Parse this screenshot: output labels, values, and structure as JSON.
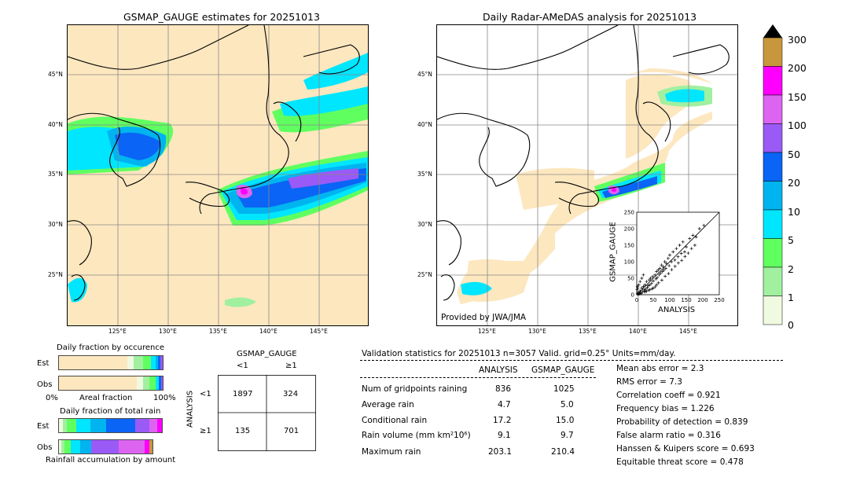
{
  "left_map": {
    "title": "GSMAP_GAUGE estimates for 20251013",
    "lat_labels": [
      "45°N",
      "40°N",
      "35°N",
      "30°N",
      "25°N"
    ],
    "lon_labels": [
      "125°E",
      "130°E",
      "135°E",
      "140°E",
      "145°E"
    ]
  },
  "right_map": {
    "title": "Daily Radar-AMeDAS analysis for 20251013",
    "lat_labels": [
      "45°N",
      "40°N",
      "35°N",
      "30°N",
      "25°N"
    ],
    "lon_labels": [
      "125°E",
      "130°E",
      "135°E",
      "140°E",
      "145°E"
    ],
    "credit": "Provided by JWA/JMA"
  },
  "colorbar": {
    "labels": [
      "300",
      "200",
      "150",
      "100",
      "50",
      "20",
      "10",
      "5",
      "2",
      "1",
      "0"
    ],
    "colors": [
      "#c8963c",
      "#ff00ff",
      "#dc64f0",
      "#9a5af5",
      "#0a64f5",
      "#00b4f0",
      "#00e6ff",
      "#60ff60",
      "#a0f0a0",
      "#f0fae0",
      "#fde7bf"
    ]
  },
  "scatter_inset": {
    "xlabel": "ANALYSIS",
    "ylabel": "GSMAP_GAUGE",
    "ticks": [
      "0",
      "50",
      "100",
      "150",
      "200",
      "250"
    ]
  },
  "chart_data": [
    {
      "type": "bar",
      "title": "Daily fraction by occurence",
      "xlabel": "Areal fraction",
      "tick_labels": [
        "0%",
        "100%"
      ],
      "categories": [
        "Est",
        "Obs"
      ]
    },
    {
      "type": "bar",
      "title": "Daily fraction of total rain",
      "xlabel": "Rainfall accumulation by amount",
      "categories": [
        "Est",
        "Obs"
      ]
    },
    {
      "type": "table",
      "title": "GSMAP_GAUGE",
      "col_labels": [
        "<1",
        "≥1"
      ],
      "row_axis": "ANALYSIS",
      "row_labels": [
        "<1",
        "≥1"
      ],
      "cells": [
        [
          "1897",
          "324"
        ],
        [
          "135",
          "701"
        ]
      ]
    },
    {
      "type": "scatter",
      "xlabel": "ANALYSIS",
      "ylabel": "GSMAP_GAUGE",
      "xlim": [
        0,
        250
      ],
      "ylim": [
        0,
        250
      ],
      "points": [
        [
          2,
          3
        ],
        [
          4,
          1
        ],
        [
          5,
          8
        ],
        [
          8,
          4
        ],
        [
          10,
          12
        ],
        [
          12,
          6
        ],
        [
          15,
          20
        ],
        [
          18,
          10
        ],
        [
          20,
          25
        ],
        [
          22,
          15
        ],
        [
          25,
          30
        ],
        [
          28,
          18
        ],
        [
          30,
          40
        ],
        [
          32,
          22
        ],
        [
          35,
          28
        ],
        [
          38,
          45
        ],
        [
          40,
          30
        ],
        [
          42,
          50
        ],
        [
          45,
          35
        ],
        [
          48,
          55
        ],
        [
          50,
          42
        ],
        [
          55,
          60
        ],
        [
          58,
          48
        ],
        [
          60,
          70
        ],
        [
          62,
          52
        ],
        [
          65,
          75
        ],
        [
          68,
          60
        ],
        [
          70,
          80
        ],
        [
          72,
          65
        ],
        [
          75,
          90
        ],
        [
          78,
          70
        ],
        [
          80,
          85
        ],
        [
          82,
          75
        ],
        [
          85,
          100
        ],
        [
          88,
          80
        ],
        [
          90,
          95
        ],
        [
          95,
          110
        ],
        [
          98,
          88
        ],
        [
          100,
          120
        ],
        [
          105,
          100
        ],
        [
          110,
          130
        ],
        [
          115,
          105
        ],
        [
          120,
          140
        ],
        [
          125,
          115
        ],
        [
          130,
          150
        ],
        [
          135,
          125
        ],
        [
          140,
          160
        ],
        [
          145,
          130
        ],
        [
          150,
          145
        ],
        [
          160,
          170
        ],
        [
          170,
          180
        ],
        [
          180,
          175
        ],
        [
          190,
          200
        ],
        [
          203,
          210
        ],
        [
          3,
          20
        ],
        [
          6,
          30
        ],
        [
          10,
          40
        ],
        [
          15,
          50
        ],
        [
          20,
          60
        ],
        [
          25,
          12
        ],
        [
          30,
          10
        ],
        [
          40,
          15
        ],
        [
          50,
          20
        ],
        [
          60,
          30
        ],
        [
          1,
          15
        ],
        [
          2,
          25
        ],
        [
          7,
          2
        ],
        [
          14,
          4
        ],
        [
          24,
          8
        ],
        [
          36,
          14
        ],
        [
          46,
          18
        ],
        [
          56,
          24
        ],
        [
          66,
          36
        ],
        [
          76,
          44
        ],
        [
          86,
          56
        ],
        [
          96,
          64
        ],
        [
          106,
          76
        ],
        [
          116,
          86
        ],
        [
          126,
          96
        ],
        [
          136,
          104
        ],
        [
          146,
          116
        ],
        [
          156,
          126
        ],
        [
          166,
          140
        ],
        [
          176,
          150
        ]
      ]
    }
  ],
  "validation": {
    "header": "Validation statistics for 20251013  n=3057 Valid. grid=0.25° Units=mm/day.",
    "col_analysis": "ANALYSIS",
    "col_gsmap": "GSMAP_GAUGE",
    "rows": [
      {
        "label": "Num of gridpoints raining",
        "analysis": "836",
        "gsmap": "1025"
      },
      {
        "label": "Average rain",
        "analysis": "4.7",
        "gsmap": "5.0"
      },
      {
        "label": "Conditional rain",
        "analysis": "17.2",
        "gsmap": "15.0"
      },
      {
        "label": "Rain volume (mm km²10⁶)",
        "analysis": "9.1",
        "gsmap": "9.7"
      },
      {
        "label": "Maximum rain",
        "analysis": "203.1",
        "gsmap": "210.4"
      }
    ],
    "scores": [
      "Mean abs error =    2.3",
      "RMS error =    7.3",
      "Correlation coeff =  0.921",
      "Frequency bias =  1.226",
      "Probability of detection =  0.839",
      "False alarm ratio =  0.316",
      "Hanssen & Kuipers score =  0.693",
      "Equitable threat score =  0.478"
    ]
  }
}
